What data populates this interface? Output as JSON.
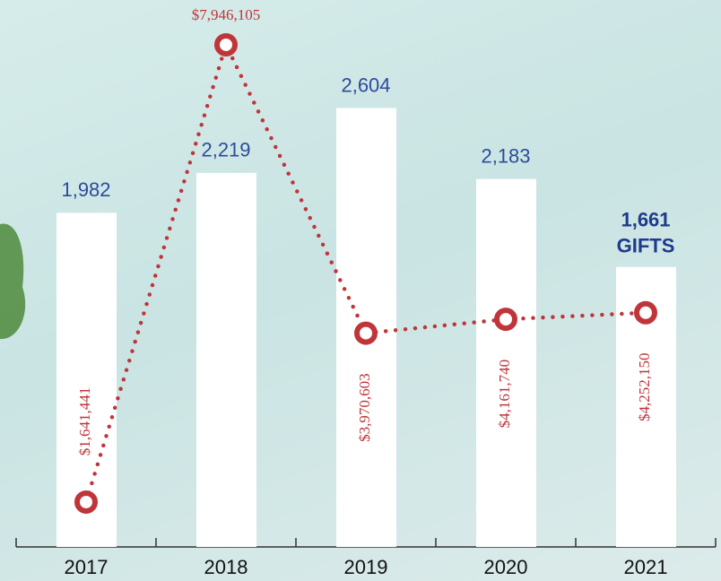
{
  "chart_data": {
    "type": "combo",
    "categories": [
      "2017",
      "2018",
      "2019",
      "2020",
      "2021"
    ],
    "annotation": "GIFTS",
    "ylim": [
      0,
      3245
    ],
    "y2lim": [
      1023000,
      8564000
    ],
    "series": [
      {
        "type": "bar",
        "color": "#ffffff",
        "label_color": "#2d4b9b",
        "values": [
          1982,
          2219,
          2604,
          2183,
          1661
        ],
        "value_labels": [
          "1,982",
          "2,219",
          "2,604",
          "2,183",
          "1,661"
        ]
      },
      {
        "type": "line",
        "axis": "y2",
        "color": "#c0353a",
        "values": [
          1641441,
          7946105,
          3970603,
          4161740,
          4252150
        ],
        "value_labels": [
          "$1,641,441",
          "$7,946,105",
          "$3,970,603",
          "$4,161,740",
          "$4,252,150"
        ]
      }
    ]
  }
}
